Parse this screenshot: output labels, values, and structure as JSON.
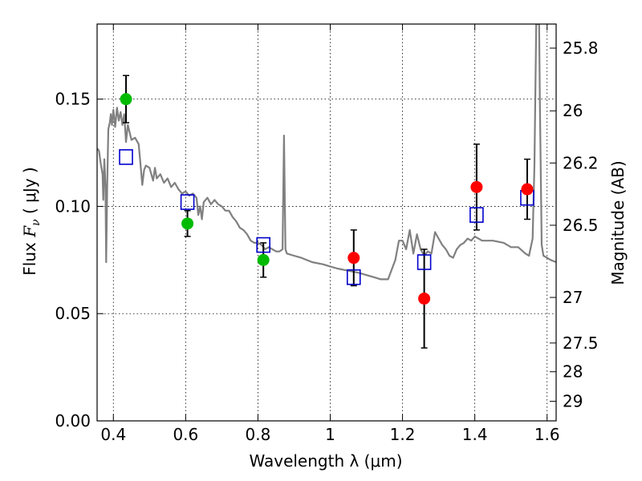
{
  "chart_data": {
    "type": "scatter",
    "xlabel": "Wavelength  λ (μm)",
    "ylabel_parts": [
      "Flux  ",
      "F",
      "ν",
      "  ( μJy )"
    ],
    "y2label": "Magnitude (AB)",
    "xlim": [
      0.355,
      1.625
    ],
    "ylim": [
      0.0,
      0.185
    ],
    "grid": true,
    "x_ticks": [
      {
        "v": 0.4,
        "label": "0.4"
      },
      {
        "v": 0.6,
        "label": "0.6"
      },
      {
        "v": 0.8,
        "label": "0.8"
      },
      {
        "v": 1.0,
        "label": "1"
      },
      {
        "v": 1.2,
        "label": "1.2"
      },
      {
        "v": 1.4,
        "label": "1.4"
      },
      {
        "v": 1.6,
        "label": "1.6"
      }
    ],
    "y_ticks": [
      {
        "v": 0.0,
        "label": "0.00"
      },
      {
        "v": 0.05,
        "label": "0.05"
      },
      {
        "v": 0.1,
        "label": "0.10"
      },
      {
        "v": 0.15,
        "label": "0.15"
      }
    ],
    "y2_ticks": [
      {
        "mag": 25.8,
        "label": "25.8"
      },
      {
        "mag": 26.0,
        "label": "26"
      },
      {
        "mag": 26.2,
        "label": "26.2"
      },
      {
        "mag": 26.5,
        "label": "26.5"
      },
      {
        "mag": 27.0,
        "label": "27"
      },
      {
        "mag": 27.5,
        "label": "27.5"
      },
      {
        "mag": 28.0,
        "label": "28"
      },
      {
        "mag": 29.0,
        "label": "29"
      }
    ],
    "colors": {
      "model": "#808080",
      "optical": "#00bb00",
      "infrared": "#ff0000",
      "model_phot": "#0000cc",
      "errorbar": "#000000"
    },
    "series": [
      {
        "kind": "line",
        "color_key": "model",
        "points": [
          [
            0.355,
            0.127
          ],
          [
            0.36,
            0.126
          ],
          [
            0.365,
            0.12
          ],
          [
            0.37,
            0.115
          ],
          [
            0.372,
            0.103
          ],
          [
            0.375,
            0.122
          ],
          [
            0.378,
            0.11
          ],
          [
            0.38,
            0.074
          ],
          [
            0.383,
            0.11
          ],
          [
            0.386,
            0.136
          ],
          [
            0.39,
            0.139
          ],
          [
            0.393,
            0.143
          ],
          [
            0.396,
            0.138
          ],
          [
            0.4,
            0.145
          ],
          [
            0.405,
            0.137
          ],
          [
            0.41,
            0.146
          ],
          [
            0.415,
            0.14
          ],
          [
            0.42,
            0.144
          ],
          [
            0.425,
            0.138
          ],
          [
            0.43,
            0.143
          ],
          [
            0.435,
            0.13
          ],
          [
            0.44,
            0.138
          ],
          [
            0.45,
            0.131
          ],
          [
            0.46,
            0.132
          ],
          [
            0.47,
            0.129
          ],
          [
            0.475,
            0.12
          ],
          [
            0.48,
            0.11
          ],
          [
            0.485,
            0.117
          ],
          [
            0.49,
            0.119
          ],
          [
            0.5,
            0.118
          ],
          [
            0.51,
            0.112
          ],
          [
            0.515,
            0.118
          ],
          [
            0.52,
            0.113
          ],
          [
            0.53,
            0.115
          ],
          [
            0.54,
            0.111
          ],
          [
            0.55,
            0.113
          ],
          [
            0.56,
            0.109
          ],
          [
            0.57,
            0.111
          ],
          [
            0.58,
            0.108
          ],
          [
            0.59,
            0.106
          ],
          [
            0.6,
            0.107
          ],
          [
            0.61,
            0.105
          ],
          [
            0.62,
            0.106
          ],
          [
            0.63,
            0.104
          ],
          [
            0.635,
            0.096
          ],
          [
            0.64,
            0.1
          ],
          [
            0.645,
            0.094
          ],
          [
            0.65,
            0.102
          ],
          [
            0.66,
            0.104
          ],
          [
            0.67,
            0.101
          ],
          [
            0.68,
            0.103
          ],
          [
            0.69,
            0.101
          ],
          [
            0.7,
            0.1
          ],
          [
            0.71,
            0.098
          ],
          [
            0.72,
            0.098
          ],
          [
            0.73,
            0.095
          ],
          [
            0.74,
            0.093
          ],
          [
            0.75,
            0.09
          ],
          [
            0.76,
            0.089
          ],
          [
            0.77,
            0.087
          ],
          [
            0.78,
            0.084
          ],
          [
            0.79,
            0.083
          ],
          [
            0.8,
            0.083
          ],
          [
            0.81,
            0.082
          ],
          [
            0.82,
            0.08
          ],
          [
            0.83,
            0.081
          ],
          [
            0.84,
            0.08
          ],
          [
            0.85,
            0.079
          ],
          [
            0.86,
            0.079
          ],
          [
            0.868,
            0.08
          ],
          [
            0.872,
            0.133
          ],
          [
            0.876,
            0.08
          ],
          [
            0.88,
            0.078
          ],
          [
            0.9,
            0.077
          ],
          [
            0.92,
            0.076
          ],
          [
            0.95,
            0.074
          ],
          [
            0.98,
            0.073
          ],
          [
            1.0,
            0.072
          ],
          [
            1.02,
            0.071
          ],
          [
            1.05,
            0.07
          ],
          [
            1.08,
            0.069
          ],
          [
            1.1,
            0.068
          ],
          [
            1.12,
            0.067
          ],
          [
            1.14,
            0.066
          ],
          [
            1.16,
            0.066
          ],
          [
            1.18,
            0.075
          ],
          [
            1.19,
            0.084
          ],
          [
            1.2,
            0.084
          ],
          [
            1.21,
            0.08
          ],
          [
            1.22,
            0.089
          ],
          [
            1.23,
            0.078
          ],
          [
            1.24,
            0.087
          ],
          [
            1.25,
            0.08
          ],
          [
            1.26,
            0.077
          ],
          [
            1.27,
            0.079
          ],
          [
            1.28,
            0.078
          ],
          [
            1.29,
            0.088
          ],
          [
            1.3,
            0.085
          ],
          [
            1.31,
            0.082
          ],
          [
            1.32,
            0.08
          ],
          [
            1.33,
            0.077
          ],
          [
            1.34,
            0.076
          ],
          [
            1.35,
            0.08
          ],
          [
            1.36,
            0.082
          ],
          [
            1.37,
            0.083
          ],
          [
            1.38,
            0.085
          ],
          [
            1.39,
            0.084
          ],
          [
            1.4,
            0.086
          ],
          [
            1.41,
            0.085
          ],
          [
            1.42,
            0.084
          ],
          [
            1.45,
            0.084
          ],
          [
            1.48,
            0.083
          ],
          [
            1.5,
            0.081
          ],
          [
            1.52,
            0.081
          ],
          [
            1.54,
            0.078
          ],
          [
            1.55,
            0.077
          ],
          [
            1.56,
            0.085
          ],
          [
            1.565,
            0.12
          ],
          [
            1.57,
            0.185
          ],
          [
            1.578,
            0.185
          ],
          [
            1.58,
            0.15
          ],
          [
            1.585,
            0.082
          ],
          [
            1.59,
            0.077
          ],
          [
            1.6,
            0.076
          ],
          [
            1.61,
            0.075
          ],
          [
            1.625,
            0.074
          ]
        ]
      },
      {
        "kind": "scatter",
        "marker": "circle",
        "color_key": "optical",
        "points": [
          {
            "x": 0.435,
            "y": 0.15,
            "err": 0.011
          },
          {
            "x": 0.605,
            "y": 0.092,
            "err": 0.006
          },
          {
            "x": 0.815,
            "y": 0.075,
            "err": 0.008
          }
        ]
      },
      {
        "kind": "scatter",
        "marker": "circle",
        "color_key": "infrared",
        "points": [
          {
            "x": 1.065,
            "y": 0.076,
            "err": 0.013
          },
          {
            "x": 1.26,
            "y": 0.057,
            "err": 0.023
          },
          {
            "x": 1.405,
            "y": 0.109,
            "err": 0.02
          },
          {
            "x": 1.545,
            "y": 0.108,
            "err": 0.014
          }
        ]
      },
      {
        "kind": "scatter",
        "marker": "square",
        "color_key": "model_phot",
        "points": [
          {
            "x": 0.435,
            "y": 0.123
          },
          {
            "x": 0.605,
            "y": 0.102
          },
          {
            "x": 0.815,
            "y": 0.082
          },
          {
            "x": 1.065,
            "y": 0.067
          },
          {
            "x": 1.26,
            "y": 0.074
          },
          {
            "x": 1.405,
            "y": 0.096
          },
          {
            "x": 1.545,
            "y": 0.104
          }
        ]
      }
    ]
  }
}
